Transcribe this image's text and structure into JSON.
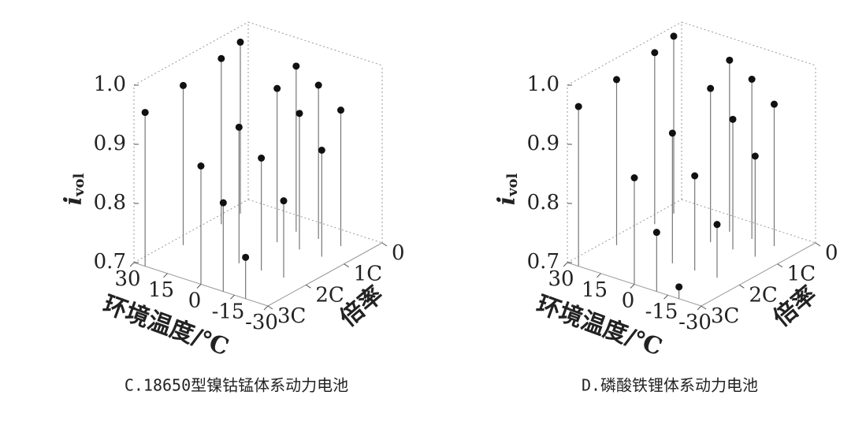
{
  "chart_data": [
    {
      "type": "stem3d",
      "caption": "C.18650型镍钴锰体系动力电池",
      "zlabel": "i",
      "zlabel_subscript": "vol",
      "xlabel": "环境温度/℃",
      "ylabel": "倍率",
      "xlim": [
        30,
        -30
      ],
      "xticks": [
        30,
        15,
        0,
        -15,
        -30
      ],
      "ylim": [
        0,
        3
      ],
      "yticks": [
        0,
        {
          "value": 1,
          "label": "1C"
        },
        {
          "value": 2,
          "label": "2C"
        },
        {
          "value": 3,
          "label": "3C"
        }
      ],
      "zlim": [
        0.7,
        1.0
      ],
      "zticks": [
        0.7,
        0.8,
        0.9,
        {
          "value": 1.0,
          "label": "1.0"
        }
      ],
      "x": [
        25,
        25,
        25,
        25,
        0,
        0,
        0,
        0,
        -10,
        -10,
        -10,
        -10,
        -20,
        -20,
        -20,
        -20
      ],
      "y": [
        0.5,
        1,
        2,
        3,
        0.5,
        1,
        2,
        3,
        0.5,
        1,
        2,
        3,
        0.5,
        1,
        2,
        3
      ],
      "values": [
        0.99,
        0.98,
        0.97,
        0.96,
        0.98,
        0.96,
        0.93,
        0.9,
        0.96,
        0.93,
        0.89,
        0.85,
        0.93,
        0.88,
        0.83,
        0.77
      ],
      "color": "#111111"
    },
    {
      "type": "stem3d",
      "caption": "D.磷酸铁锂体系动力电池",
      "zlabel": "i",
      "zlabel_subscript": "vol",
      "xlabel": "环境温度/℃",
      "ylabel": "倍率",
      "xlim": [
        30,
        -30
      ],
      "xticks": [
        30,
        15,
        0,
        -15,
        -30
      ],
      "ylim": [
        0,
        3
      ],
      "yticks": [
        0,
        {
          "value": 1,
          "label": "1C"
        },
        {
          "value": 2,
          "label": "2C"
        },
        {
          "value": 3,
          "label": "3C"
        }
      ],
      "zlim": [
        0.7,
        1.0
      ],
      "zticks": [
        0.7,
        0.8,
        0.9,
        {
          "value": 1.0,
          "label": "1.0"
        }
      ],
      "x": [
        25,
        25,
        25,
        25,
        0,
        0,
        0,
        0,
        -10,
        -10,
        -10,
        -10,
        -20,
        -20,
        -20,
        -20
      ],
      "y": [
        0.5,
        1,
        2,
        3,
        0.5,
        1,
        2,
        3,
        0.5,
        1,
        2,
        3,
        0.5,
        1,
        2,
        3
      ],
      "values": [
        1.0,
        0.99,
        0.98,
        0.97,
        0.99,
        0.96,
        0.92,
        0.88,
        0.97,
        0.92,
        0.86,
        0.8,
        0.94,
        0.87,
        0.79,
        0.72
      ],
      "color": "#111111"
    }
  ]
}
